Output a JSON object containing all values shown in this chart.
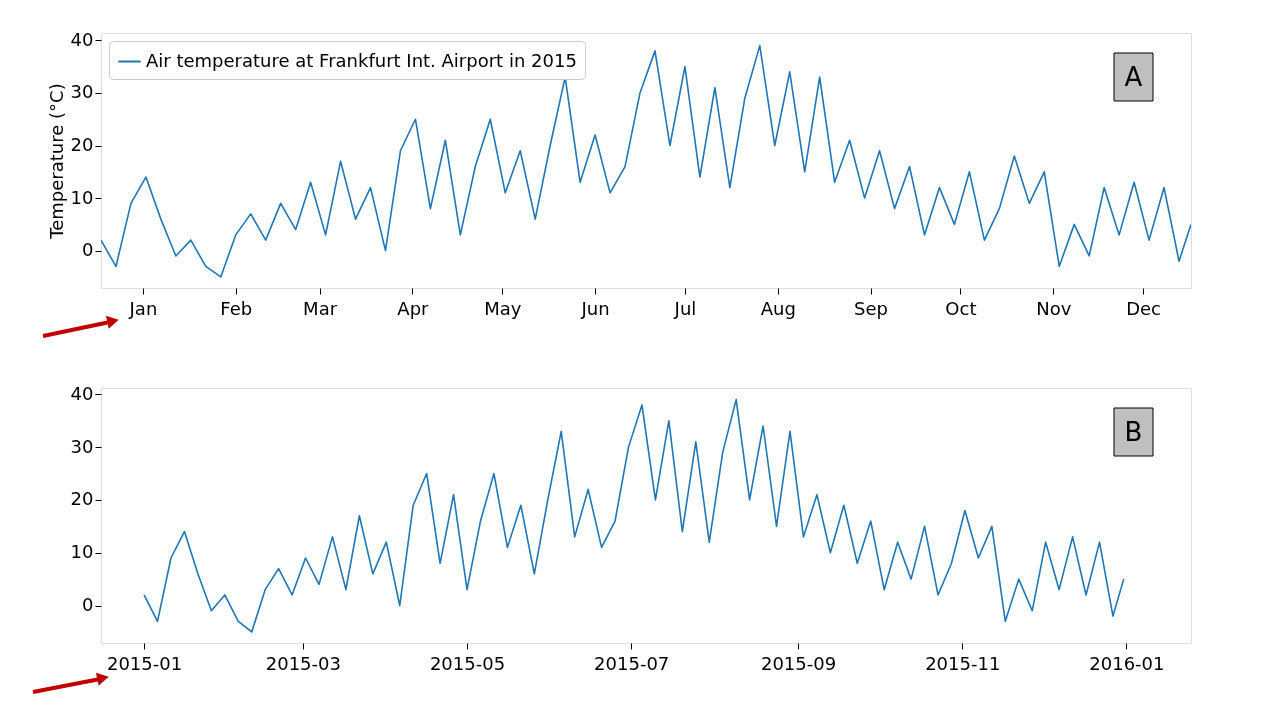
{
  "chart_data": [
    {
      "type": "line",
      "ylabel": "Temperature (°C)",
      "annotations": [
        "A"
      ],
      "legend": "top left",
      "grid": false,
      "x": [
        "2014-12-18",
        "2014-12-23",
        "2014-12-28",
        "2015-01-02",
        "2015-01-07",
        "2015-01-12",
        "2015-01-17",
        "2015-01-22",
        "2015-01-27",
        "2015-02-01",
        "2015-02-06",
        "2015-02-11",
        "2015-02-16",
        "2015-02-21",
        "2015-02-26",
        "2015-03-03",
        "2015-03-08",
        "2015-03-13",
        "2015-03-18",
        "2015-03-23",
        "2015-03-28",
        "2015-04-02",
        "2015-04-07",
        "2015-04-12",
        "2015-04-17",
        "2015-04-22",
        "2015-04-27",
        "2015-05-02",
        "2015-05-07",
        "2015-05-12",
        "2015-05-17",
        "2015-05-22",
        "2015-05-27",
        "2015-06-01",
        "2015-06-06",
        "2015-06-11",
        "2015-06-16",
        "2015-06-21",
        "2015-06-26",
        "2015-07-01",
        "2015-07-06",
        "2015-07-11",
        "2015-07-16",
        "2015-07-21",
        "2015-07-26",
        "2015-07-31",
        "2015-08-05",
        "2015-08-10",
        "2015-08-15",
        "2015-08-20",
        "2015-08-25",
        "2015-08-30",
        "2015-09-04",
        "2015-09-09",
        "2015-09-14",
        "2015-09-19",
        "2015-09-24",
        "2015-09-29",
        "2015-10-04",
        "2015-10-09",
        "2015-10-14",
        "2015-10-19",
        "2015-10-24",
        "2015-10-29",
        "2015-11-03",
        "2015-11-08",
        "2015-11-13",
        "2015-11-18",
        "2015-11-23",
        "2015-11-28",
        "2015-12-03",
        "2015-12-08",
        "2015-12-13",
        "2015-12-17"
      ],
      "series": [
        {
          "name": "Air temperature at Frankfurt Int. Airport in 2015",
          "color": "#1f77b4",
          "values": [
            2,
            -3,
            9,
            14,
            6,
            -1,
            2,
            -3,
            -5,
            3,
            7,
            2,
            9,
            4,
            13,
            3,
            17,
            6,
            12,
            0,
            19,
            25,
            8,
            21,
            3,
            16,
            25,
            11,
            19,
            6,
            20,
            33,
            13,
            22,
            11,
            16,
            30,
            38,
            20,
            35,
            14,
            31,
            12,
            29,
            39,
            20,
            34,
            15,
            33,
            13,
            21,
            10,
            19,
            8,
            16,
            3,
            12,
            5,
            15,
            2,
            8,
            18,
            9,
            15,
            -3,
            5,
            -1,
            12,
            3,
            13,
            2,
            12,
            -2,
            5
          ]
        }
      ],
      "xlim": [
        "2014-12-18",
        "2015-12-17"
      ],
      "xticks": [
        {
          "value": "2015-01-01",
          "label": "Jan"
        },
        {
          "value": "2015-02-01",
          "label": "Feb"
        },
        {
          "value": "2015-03-01",
          "label": "Mar"
        },
        {
          "value": "2015-04-01",
          "label": "Apr"
        },
        {
          "value": "2015-05-01",
          "label": "May"
        },
        {
          "value": "2015-06-01",
          "label": "Jun"
        },
        {
          "value": "2015-07-01",
          "label": "Jul"
        },
        {
          "value": "2015-08-01",
          "label": "Aug"
        },
        {
          "value": "2015-09-01",
          "label": "Sep"
        },
        {
          "value": "2015-10-01",
          "label": "Oct"
        },
        {
          "value": "2015-11-01",
          "label": "Nov"
        },
        {
          "value": "2015-12-01",
          "label": "Dec"
        }
      ],
      "ylim": [
        -7.1,
        41.4
      ],
      "yticks": [
        0,
        10,
        20,
        30,
        40
      ]
    },
    {
      "type": "line",
      "annotations": [
        "B"
      ],
      "grid": false,
      "x": [
        "2015-01-01",
        "2015-01-06",
        "2015-01-11",
        "2015-01-16",
        "2015-01-21",
        "2015-01-26",
        "2015-01-31",
        "2015-02-05",
        "2015-02-10",
        "2015-02-15",
        "2015-02-20",
        "2015-02-25",
        "2015-03-02",
        "2015-03-07",
        "2015-03-12",
        "2015-03-17",
        "2015-03-22",
        "2015-03-27",
        "2015-04-01",
        "2015-04-06",
        "2015-04-11",
        "2015-04-16",
        "2015-04-21",
        "2015-04-26",
        "2015-05-01",
        "2015-05-06",
        "2015-05-11",
        "2015-05-16",
        "2015-05-21",
        "2015-05-26",
        "2015-05-31",
        "2015-06-05",
        "2015-06-10",
        "2015-06-15",
        "2015-06-20",
        "2015-06-25",
        "2015-06-30",
        "2015-07-05",
        "2015-07-10",
        "2015-07-15",
        "2015-07-20",
        "2015-07-25",
        "2015-07-30",
        "2015-08-04",
        "2015-08-09",
        "2015-08-14",
        "2015-08-19",
        "2015-08-24",
        "2015-08-29",
        "2015-09-03",
        "2015-09-08",
        "2015-09-13",
        "2015-09-18",
        "2015-09-23",
        "2015-09-28",
        "2015-10-03",
        "2015-10-08",
        "2015-10-13",
        "2015-10-18",
        "2015-10-23",
        "2015-10-28",
        "2015-11-02",
        "2015-11-07",
        "2015-11-12",
        "2015-11-17",
        "2015-11-22",
        "2015-11-27",
        "2015-12-02",
        "2015-12-07",
        "2015-12-12",
        "2015-12-17",
        "2015-12-22",
        "2015-12-27",
        "2015-12-31"
      ],
      "series": [
        {
          "color": "#1f77b4",
          "values": [
            2,
            -3,
            9,
            14,
            6,
            -1,
            2,
            -3,
            -5,
            3,
            7,
            2,
            9,
            4,
            13,
            3,
            17,
            6,
            12,
            0,
            19,
            25,
            8,
            21,
            3,
            16,
            25,
            11,
            19,
            6,
            20,
            33,
            13,
            22,
            11,
            16,
            30,
            38,
            20,
            35,
            14,
            31,
            12,
            29,
            39,
            20,
            34,
            15,
            33,
            13,
            21,
            10,
            19,
            8,
            16,
            3,
            12,
            5,
            15,
            2,
            8,
            18,
            9,
            15,
            -3,
            5,
            -1,
            12,
            3,
            13,
            2,
            12,
            -2,
            5
          ]
        }
      ],
      "xlim": [
        "2014-12-16",
        "2016-01-25"
      ],
      "xticks": [
        {
          "value": "2015-01-01",
          "label": "2015-01"
        },
        {
          "value": "2015-03-01",
          "label": "2015-03"
        },
        {
          "value": "2015-05-01",
          "label": "2015-05"
        },
        {
          "value": "2015-07-01",
          "label": "2015-07"
        },
        {
          "value": "2015-09-01",
          "label": "2015-09"
        },
        {
          "value": "2015-11-01",
          "label": "2015-11"
        },
        {
          "value": "2016-01-01",
          "label": "2016-01"
        }
      ],
      "ylim": [
        -7.1,
        41.2
      ],
      "yticks": [
        0,
        10,
        20,
        30,
        40
      ]
    }
  ]
}
